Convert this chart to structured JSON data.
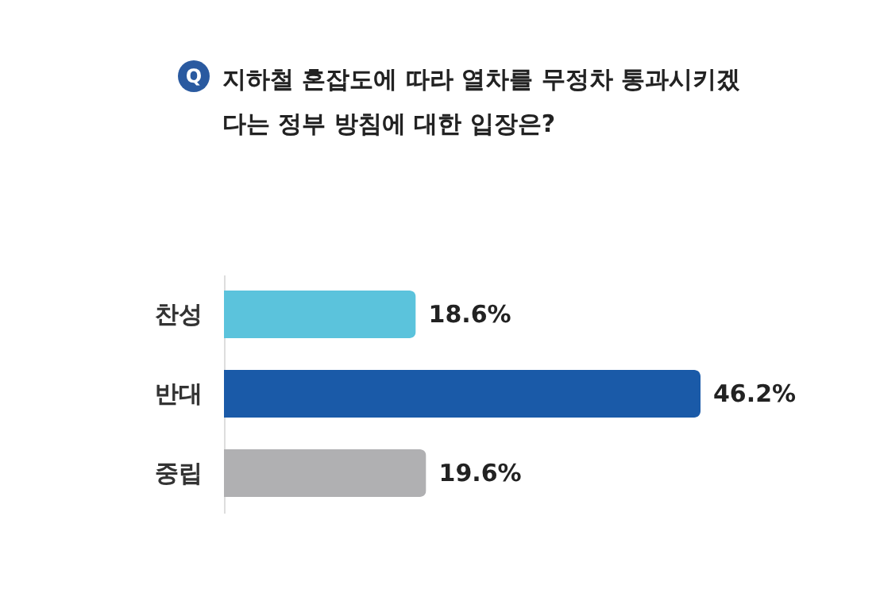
{
  "chart_data": {
    "type": "bar",
    "orientation": "horizontal",
    "title": "지하철 혼잡도에 따라 열차를 무정차 통과시키겠다는 정부 방침에 대한 입장은?",
    "annotations": [
      "Q"
    ],
    "categories": [
      "찬성",
      "반대",
      "중립"
    ],
    "values": [
      18.6,
      46.2,
      19.6
    ],
    "colors": [
      "#5bc3dc",
      "#1a5aa8",
      "#b0b0b2"
    ],
    "value_labels": [
      "18.6%",
      "46.2%",
      "19.6%"
    ]
  }
}
